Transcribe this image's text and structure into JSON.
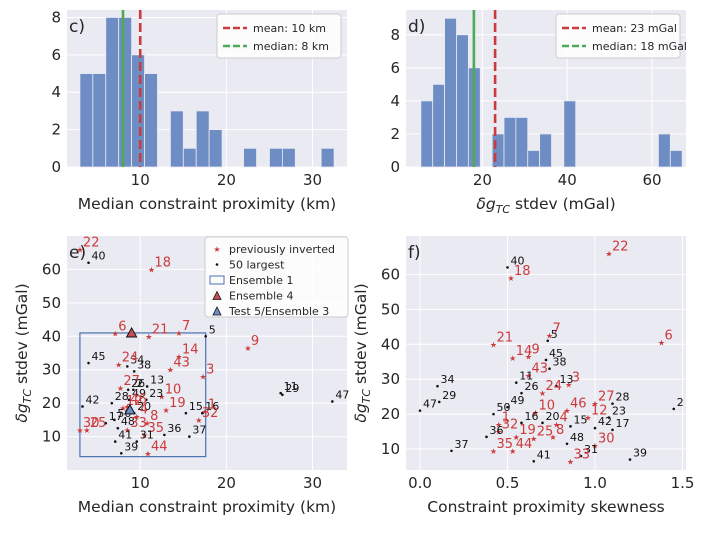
{
  "colors": {
    "bar": "#6d8dc4",
    "mean": "#cc3b3b",
    "median": "#4daa57",
    "prev": "#cc3b3b",
    "largest": "#111111",
    "ensemble1": "#4c72b0",
    "ens4": "#c44e52",
    "test5": "#6d8dc4"
  },
  "chart_data": [
    {
      "id": "c",
      "type": "bar",
      "panel_label": "c)",
      "xlabel": "Median constraint proximity (km)",
      "ylabel": "",
      "xlim": [
        1.5,
        34
      ],
      "ylim": [
        0,
        8.4
      ],
      "xticks": [
        10,
        20,
        30
      ],
      "yticks": [
        0,
        2,
        4,
        6,
        8
      ],
      "xticklabels": [
        "10",
        "20",
        "30"
      ],
      "yticklabels": [
        "0",
        "2",
        "4",
        "6",
        "8"
      ],
      "bin_edges": [
        3,
        4.5,
        6,
        7.5,
        9,
        10.5
      ],
      "bins": [
        [
          3,
          4.5,
          5
        ],
        [
          4.5,
          6,
          5
        ],
        [
          6,
          7.5,
          8
        ],
        [
          7.5,
          9,
          8
        ],
        [
          9,
          10.5,
          6
        ],
        [
          10.5,
          12,
          5
        ],
        [
          13.5,
          15,
          3
        ],
        [
          15,
          16.5,
          1
        ],
        [
          16.5,
          18,
          3
        ],
        [
          18,
          19.5,
          2
        ],
        [
          22,
          23.5,
          1
        ],
        [
          25,
          26.5,
          1
        ],
        [
          26.5,
          28,
          1
        ],
        [
          31,
          32.5,
          1
        ]
      ],
      "mean": 10,
      "median": 8,
      "legend": [
        "mean: 10 km",
        "median: 8 km"
      ]
    },
    {
      "id": "d",
      "type": "bar",
      "panel_label": "d)",
      "xlabel": "δg_TC stdev (mGal)",
      "ylabel": "",
      "xlim": [
        2,
        68
      ],
      "ylim": [
        0,
        9.5
      ],
      "xticks": [
        20,
        40,
        60
      ],
      "yticks": [
        0,
        2,
        4,
        6,
        8
      ],
      "xticklabels": [
        "20",
        "40",
        "60"
      ],
      "yticklabels": [
        "0",
        "2",
        "4",
        "6",
        "8"
      ],
      "bins": [
        [
          5.5,
          8.3,
          4
        ],
        [
          8.3,
          11.1,
          5
        ],
        [
          11.1,
          13.9,
          9
        ],
        [
          13.9,
          16.7,
          8
        ],
        [
          16.7,
          19.5,
          6
        ],
        [
          22.3,
          25.1,
          2
        ],
        [
          25.1,
          27.9,
          3
        ],
        [
          27.9,
          30.7,
          3
        ],
        [
          30.7,
          33.5,
          1
        ],
        [
          33.5,
          36.3,
          2
        ],
        [
          39.2,
          42,
          4
        ],
        [
          61.5,
          64.3,
          2
        ],
        [
          64.3,
          67.1,
          1
        ]
      ],
      "mean": 23,
      "median": 18,
      "legend": [
        "mean: 23 mGal",
        "median: 18 mGal"
      ]
    },
    {
      "id": "e",
      "type": "scatter",
      "panel_label": "e)",
      "xlabel": "Median constraint proximity (km)",
      "ylabel": "δg_TC stdev (mGal)",
      "xlim": [
        1.5,
        34
      ],
      "ylim": [
        0,
        70
      ],
      "xticks": [
        10,
        20,
        30
      ],
      "yticks": [
        10,
        20,
        30,
        40,
        50,
        60
      ],
      "xticklabels": [
        "10",
        "20",
        "30"
      ],
      "yticklabels": [
        "10",
        "20",
        "30",
        "40",
        "50",
        "60"
      ],
      "ensemble1_box": {
        "x": [
          3,
          17.6
        ],
        "y": [
          4,
          41
        ]
      },
      "ensemble4": {
        "x": 9,
        "y": 41
      },
      "test5": {
        "x": 8.8,
        "y": 18
      },
      "legend": [
        "previously inverted",
        "50 largest",
        "Ensemble 1",
        "Ensemble 4",
        "Test 5/Ensemble 3"
      ],
      "points": [
        {
          "id": "22",
          "x": 3,
          "y": 66,
          "prev": true
        },
        {
          "id": "40",
          "x": 4,
          "y": 62,
          "prev": false
        },
        {
          "id": "18",
          "x": 11.3,
          "y": 60,
          "prev": true
        },
        {
          "id": "6",
          "x": 7.1,
          "y": 40.8,
          "prev": true
        },
        {
          "id": "21",
          "x": 11,
          "y": 40,
          "prev": true
        },
        {
          "id": "7",
          "x": 14.5,
          "y": 41,
          "prev": true
        },
        {
          "id": "5",
          "x": 17.6,
          "y": 40,
          "prev": false
        },
        {
          "id": "9",
          "x": 22.5,
          "y": 36.5,
          "prev": true
        },
        {
          "id": "45",
          "x": 4,
          "y": 32,
          "prev": false
        },
        {
          "id": "34",
          "x": 8.5,
          "y": 31,
          "prev": false
        },
        {
          "id": "14",
          "x": 14.5,
          "y": 34,
          "prev": true
        },
        {
          "id": "24",
          "x": 7.5,
          "y": 31.5,
          "prev": true
        },
        {
          "id": "38",
          "x": 9.3,
          "y": 29.5,
          "prev": false
        },
        {
          "id": "43",
          "x": 13.5,
          "y": 30,
          "prev": true
        },
        {
          "id": "3",
          "x": 17.3,
          "y": 28,
          "prev": true
        },
        {
          "id": "27",
          "x": 7.7,
          "y": 24.5,
          "prev": true
        },
        {
          "id": "26",
          "x": 8.6,
          "y": 24,
          "prev": false
        },
        {
          "id": "2",
          "x": 9.2,
          "y": 24,
          "prev": false
        },
        {
          "id": "13",
          "x": 10.8,
          "y": 25,
          "prev": false
        },
        {
          "id": "10",
          "x": 12.5,
          "y": 22,
          "prev": true
        },
        {
          "id": "11",
          "x": 26.3,
          "y": 23,
          "prev": false
        },
        {
          "id": "29",
          "x": 26.5,
          "y": 22.5,
          "prev": false
        },
        {
          "id": "47",
          "x": 32.3,
          "y": 20.5,
          "prev": false
        },
        {
          "id": "28",
          "x": 6.7,
          "y": 20,
          "prev": false
        },
        {
          "id": "49",
          "x": 8.7,
          "y": 21,
          "prev": false
        },
        {
          "id": "23",
          "x": 10.7,
          "y": 21,
          "prev": false
        },
        {
          "id": "19",
          "x": 13,
          "y": 18,
          "prev": true
        },
        {
          "id": "15",
          "x": 15.3,
          "y": 17,
          "prev": false
        },
        {
          "id": "1",
          "x": 17.5,
          "y": 17.5,
          "prev": true
        },
        {
          "id": "16",
          "x": 17.2,
          "y": 17,
          "prev": false
        },
        {
          "id": "42",
          "x": 3.3,
          "y": 19,
          "prev": false
        },
        {
          "id": "46",
          "x": 8.5,
          "y": 19,
          "prev": true
        },
        {
          "id": "12",
          "x": 8,
          "y": 18.5,
          "prev": true
        },
        {
          "id": "20",
          "x": 9.3,
          "y": 17,
          "prev": false
        },
        {
          "id": "30",
          "x": 3,
          "y": 12,
          "prev": true
        },
        {
          "id": "17",
          "x": 6,
          "y": 14,
          "prev": false
        },
        {
          "id": "50",
          "x": 7,
          "y": 15,
          "prev": false
        },
        {
          "id": "4",
          "x": 9.6,
          "y": 16,
          "prev": true
        },
        {
          "id": "8",
          "x": 10.8,
          "y": 14,
          "prev": true
        },
        {
          "id": "32",
          "x": 16.8,
          "y": 15,
          "prev": true
        },
        {
          "id": "25",
          "x": 3.8,
          "y": 12,
          "prev": true
        },
        {
          "id": "48",
          "x": 7.4,
          "y": 12.5,
          "prev": false
        },
        {
          "id": "33",
          "x": 8.5,
          "y": 12,
          "prev": true
        },
        {
          "id": "35",
          "x": 10.5,
          "y": 10.5,
          "prev": true
        },
        {
          "id": "36",
          "x": 12.8,
          "y": 10.5,
          "prev": false
        },
        {
          "id": "37",
          "x": 15.7,
          "y": 10,
          "prev": false
        },
        {
          "id": "41",
          "x": 7.1,
          "y": 8.5,
          "prev": false
        },
        {
          "id": "31",
          "x": 9.6,
          "y": 8.5,
          "prev": false
        },
        {
          "id": "39",
          "x": 7.8,
          "y": 5,
          "prev": false
        },
        {
          "id": "44",
          "x": 10.9,
          "y": 5,
          "prev": true
        }
      ]
    },
    {
      "id": "f",
      "type": "scatter",
      "panel_label": "f)",
      "xlabel": "Constraint proximity skewness",
      "ylabel": "δg_TC stdev (mGal)",
      "xlim": [
        -0.08,
        1.52
      ],
      "ylim": [
        4,
        71
      ],
      "xticks": [
        0.0,
        0.5,
        1.0,
        1.5
      ],
      "yticks": [
        10,
        20,
        30,
        40,
        50,
        60
      ],
      "xticklabels": [
        "0.0",
        "0.5",
        "1.0",
        "1.5"
      ],
      "yticklabels": [
        "10",
        "20",
        "30",
        "40",
        "50",
        "60"
      ],
      "points": [
        {
          "id": "22",
          "x": 1.08,
          "y": 66,
          "prev": true
        },
        {
          "id": "40",
          "x": 0.5,
          "y": 62,
          "prev": false
        },
        {
          "id": "18",
          "x": 0.52,
          "y": 59,
          "prev": true
        },
        {
          "id": "7",
          "x": 0.74,
          "y": 42.5,
          "prev": true
        },
        {
          "id": "6",
          "x": 1.38,
          "y": 40.5,
          "prev": true
        },
        {
          "id": "21",
          "x": 0.42,
          "y": 40,
          "prev": true
        },
        {
          "id": "14",
          "x": 0.53,
          "y": 36,
          "prev": true
        },
        {
          "id": "9",
          "x": 0.62,
          "y": 36.5,
          "prev": true
        },
        {
          "id": "45",
          "x": 0.72,
          "y": 35.5,
          "prev": false
        },
        {
          "id": "38",
          "x": 0.74,
          "y": 33,
          "prev": false
        },
        {
          "id": "43",
          "x": 0.62,
          "y": 31,
          "prev": true
        },
        {
          "id": "11",
          "x": 0.55,
          "y": 29,
          "prev": false
        },
        {
          "id": "3",
          "x": 0.85,
          "y": 28.5,
          "prev": true
        },
        {
          "id": "13",
          "x": 0.78,
          "y": 28,
          "prev": false
        },
        {
          "id": "34",
          "x": 0.1,
          "y": 28,
          "prev": false
        },
        {
          "id": "26",
          "x": 0.58,
          "y": 26,
          "prev": false
        },
        {
          "id": "24",
          "x": 0.7,
          "y": 26,
          "prev": true
        },
        {
          "id": "29",
          "x": 0.11,
          "y": 23.5,
          "prev": false
        },
        {
          "id": "27",
          "x": 1,
          "y": 23,
          "prev": true
        },
        {
          "id": "28",
          "x": 1.1,
          "y": 23,
          "prev": false
        },
        {
          "id": "2",
          "x": 1.45,
          "y": 21.5,
          "prev": false
        },
        {
          "id": "47",
          "x": 0,
          "y": 21,
          "prev": false
        },
        {
          "id": "49",
          "x": 0.5,
          "y": 22,
          "prev": false
        },
        {
          "id": "50",
          "x": 0.42,
          "y": 20,
          "prev": false
        },
        {
          "id": "10",
          "x": 0.66,
          "y": 20.5,
          "prev": true
        },
        {
          "id": "46",
          "x": 0.84,
          "y": 21,
          "prev": true
        },
        {
          "id": "12",
          "x": 0.96,
          "y": 19,
          "prev": true
        },
        {
          "id": "23",
          "x": 1.08,
          "y": 19,
          "prev": false
        },
        {
          "id": "1",
          "x": 0.45,
          "y": 17,
          "prev": true
        },
        {
          "id": "16",
          "x": 0.58,
          "y": 17.5,
          "prev": false
        },
        {
          "id": "20",
          "x": 0.7,
          "y": 17.5,
          "prev": false
        },
        {
          "id": "4",
          "x": 0.78,
          "y": 17,
          "prev": true
        },
        {
          "id": "15",
          "x": 0.86,
          "y": 16.5,
          "prev": false
        },
        {
          "id": "42",
          "x": 1.0,
          "y": 16,
          "prev": false
        },
        {
          "id": "17",
          "x": 1.1,
          "y": 15.5,
          "prev": false
        },
        {
          "id": "32",
          "x": 0.45,
          "y": 15,
          "prev": true
        },
        {
          "id": "36",
          "x": 0.38,
          "y": 13.5,
          "prev": false
        },
        {
          "id": "19",
          "x": 0.55,
          "y": 13.5,
          "prev": true
        },
        {
          "id": "25",
          "x": 0.65,
          "y": 13,
          "prev": true
        },
        {
          "id": "8",
          "x": 0.76,
          "y": 13.5,
          "prev": true
        },
        {
          "id": "30",
          "x": 1.0,
          "y": 11,
          "prev": true
        },
        {
          "id": "48",
          "x": 0.84,
          "y": 11.5,
          "prev": false
        },
        {
          "id": "37",
          "x": 0.18,
          "y": 9.5,
          "prev": false
        },
        {
          "id": "35",
          "x": 0.42,
          "y": 9.5,
          "prev": true
        },
        {
          "id": "44",
          "x": 0.53,
          "y": 9.5,
          "prev": true
        },
        {
          "id": "31",
          "x": 0.92,
          "y": 8,
          "prev": false
        },
        {
          "id": "39",
          "x": 1.2,
          "y": 7,
          "prev": false
        },
        {
          "id": "41",
          "x": 0.65,
          "y": 6.5,
          "prev": false
        },
        {
          "id": "33",
          "x": 0.86,
          "y": 6.5,
          "prev": true
        },
        {
          "id": "5",
          "x": 0.73,
          "y": 41,
          "prev": false
        }
      ]
    }
  ]
}
